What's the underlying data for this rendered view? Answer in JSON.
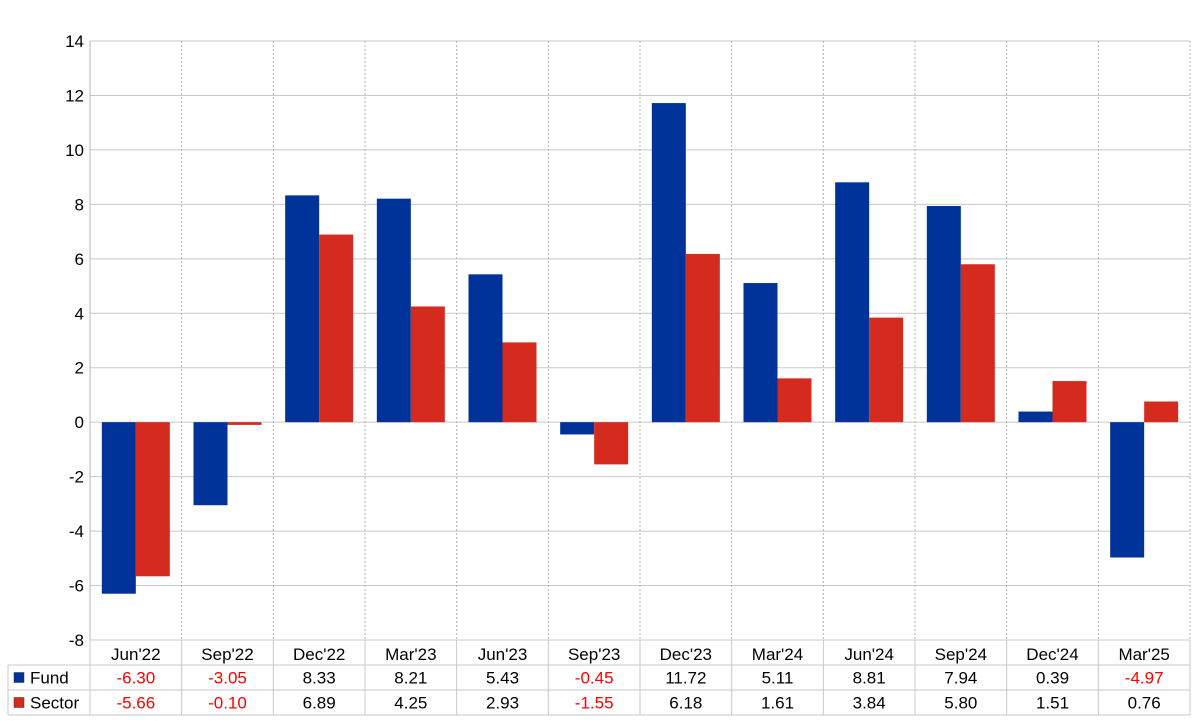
{
  "chart_data": {
    "type": "bar",
    "title": "",
    "xlabel": "",
    "ylabel": "",
    "categories": [
      "Jun'22",
      "Sep'22",
      "Dec'22",
      "Mar'23",
      "Jun'23",
      "Sep'23",
      "Dec'23",
      "Mar'24",
      "Jun'24",
      "Sep'24",
      "Dec'24",
      "Mar'25"
    ],
    "series": [
      {
        "name": "Fund",
        "color": "#003399",
        "values": [
          -6.3,
          -3.05,
          8.33,
          8.21,
          5.43,
          -0.45,
          11.72,
          5.11,
          8.81,
          7.94,
          0.39,
          -4.97
        ],
        "labels": [
          "-6.30",
          "-3.05",
          "8.33",
          "8.21",
          "5.43",
          "-0.45",
          "11.72",
          "5.11",
          "8.81",
          "7.94",
          "0.39",
          "-4.97"
        ]
      },
      {
        "name": "Sector",
        "color": "#d52b1e",
        "values": [
          -5.66,
          -0.1,
          6.89,
          4.25,
          2.93,
          -1.55,
          6.18,
          1.61,
          3.84,
          5.8,
          1.51,
          0.76
        ],
        "labels": [
          "-5.66",
          "-0.10",
          "6.89",
          "4.25",
          "2.93",
          "-1.55",
          "6.18",
          "1.61",
          "3.84",
          "5.80",
          "1.51",
          "0.76"
        ]
      }
    ],
    "ylim": [
      -8,
      14
    ],
    "yticks": [
      -8,
      -6,
      -4,
      -2,
      0,
      2,
      4,
      6,
      8,
      10,
      12,
      14
    ],
    "grid": true,
    "legend": "data-table-left",
    "negative_value_color": "#ff0000",
    "data_table": true
  }
}
